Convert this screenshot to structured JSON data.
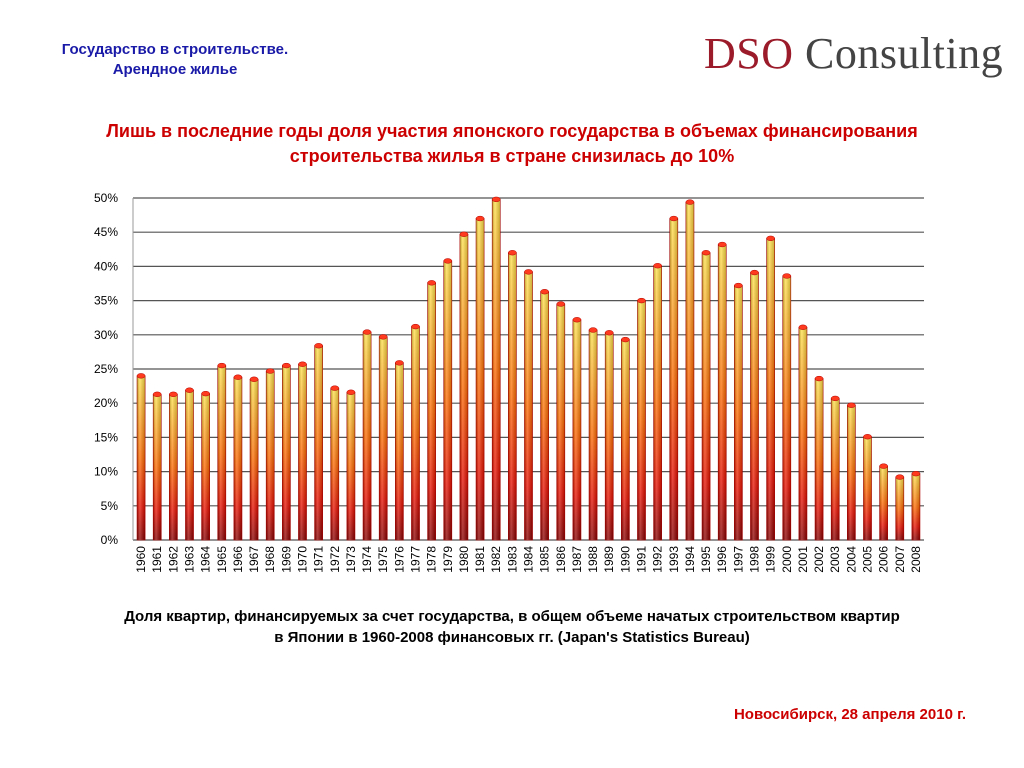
{
  "header": {
    "topic_line1": "Государство в строительстве.",
    "topic_line2": "Арендное жилье",
    "logo_part1": "DSO",
    "logo_part2": "Consulting"
  },
  "headline": {
    "line1": "Лишь в последние годы доля участия японского государства в объемах финансирования",
    "line2": "строительства жилья в стране снизилась до 10%"
  },
  "caption": {
    "line1": "Доля квартир, финансируемых за счет государства,  в общем объеме начатых строительством квартир",
    "line2": "в Японии в 1960-2008 финансовых гг. (Japan's Statistics Bureau)"
  },
  "footer": {
    "place_date": "Новосибирск, 28 апреля 2010 г."
  },
  "colors": {
    "bar_top": "#ffe34a",
    "bar_mid": "#ff6a00",
    "bar_bottom": "#8a0000",
    "bar_cap": "#ff3b1f",
    "grid": "#555555",
    "headline": "#cc0000",
    "header": "#1a1aa8"
  },
  "chart_data": {
    "type": "bar",
    "title": "",
    "xlabel": "",
    "ylabel": "",
    "ylim": [
      0,
      50
    ],
    "y_ticks": [
      0,
      5,
      10,
      15,
      20,
      25,
      30,
      35,
      40,
      45,
      50
    ],
    "y_tick_labels": [
      "0%",
      "5%",
      "10%",
      "15%",
      "20%",
      "25%",
      "30%",
      "35%",
      "40%",
      "45%",
      "50%"
    ],
    "grid": true,
    "categories": [
      "1960",
      "1961",
      "1962",
      "1963",
      "1964",
      "1965",
      "1966",
      "1967",
      "1968",
      "1969",
      "1970",
      "1971",
      "1972",
      "1973",
      "1974",
      "1975",
      "1976",
      "1977",
      "1978",
      "1979",
      "1980",
      "1981",
      "1982",
      "1983",
      "1984",
      "1985",
      "1986",
      "1987",
      "1988",
      "1989",
      "1990",
      "1991",
      "1992",
      "1993",
      "1994",
      "1995",
      "1996",
      "1997",
      "1998",
      "1999",
      "2000",
      "2001",
      "2002",
      "2003",
      "2004",
      "2005",
      "2006",
      "2007",
      "2008"
    ],
    "values": [
      24,
      21.3,
      21.3,
      21.9,
      21.4,
      25.5,
      23.8,
      23.5,
      24.7,
      25.5,
      25.7,
      28.4,
      22.2,
      21.6,
      30.4,
      29.7,
      25.9,
      31.2,
      37.6,
      40.8,
      44.7,
      47,
      49.8,
      42,
      39.2,
      36.3,
      34.5,
      32.2,
      30.7,
      30.3,
      29.3,
      35,
      40.1,
      47,
      49.4,
      42,
      43.2,
      37.2,
      39.1,
      44.1,
      38.6,
      31.1,
      23.6,
      20.7,
      19.7,
      15.1,
      10.8,
      9.2,
      9.7
    ]
  }
}
